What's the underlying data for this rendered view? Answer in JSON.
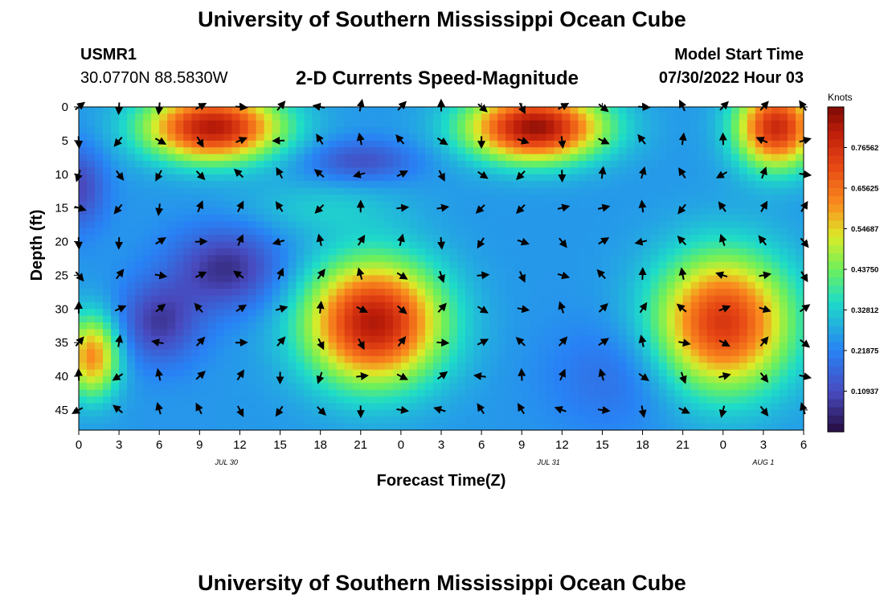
{
  "page": {
    "title": "University of Southern Mississippi Ocean Cube",
    "title_bottom": "University of Southern Mississippi Ocean Cube",
    "station_id": "USMR1",
    "coordinates": "30.0770N  88.5830W",
    "subtitle": "2-D Currents Speed-Magnitude",
    "model_start_label": "Model Start Time",
    "model_start_value": "07/30/2022 Hour 03"
  },
  "chart_data": {
    "type": "heatmap",
    "title": "2-D Currents Speed-Magnitude",
    "xlabel": "Forecast Time(Z)",
    "ylabel": "Depth (ft)",
    "x_tick_labels": [
      "0",
      "3",
      "6",
      "9",
      "12",
      "15",
      "18",
      "21",
      "0",
      "3",
      "6",
      "9",
      "12",
      "15",
      "18",
      "21",
      "0",
      "3",
      "6"
    ],
    "date_labels": [
      {
        "label": "JUL 30",
        "hour_index": 11
      },
      {
        "label": "JUL 31",
        "hour_index": 35
      },
      {
        "label": "AUG 1",
        "hour_index": 51
      }
    ],
    "x_range_hours": [
      0,
      54
    ],
    "y_ticks": [
      0,
      5,
      10,
      15,
      20,
      25,
      30,
      35,
      40,
      45
    ],
    "y_range_ft": [
      0,
      48
    ],
    "colorbar": {
      "label": "Knots",
      "range": [
        0,
        0.875
      ],
      "ticks": [
        "0.10937",
        "0.21875",
        "0.32812",
        "0.43750",
        "0.54687",
        "0.65625",
        "0.76562"
      ],
      "tick_values": [
        0.10937,
        0.21875,
        0.32812,
        0.4375,
        0.54687,
        0.65625,
        0.76562
      ]
    },
    "arrow_times_hours": [
      0,
      3,
      6,
      9,
      12,
      15,
      18,
      21,
      24,
      27,
      30,
      33,
      36,
      39,
      42,
      45,
      48,
      51,
      54
    ],
    "arrow_depths_ft": [
      0,
      5,
      10,
      15,
      20,
      25,
      30,
      35,
      40,
      45
    ],
    "speed_features": [
      {
        "t_hours": 10,
        "depth_ft": 3,
        "speed_knots": 0.82,
        "extent_hours": 5,
        "extent_ft": 5
      },
      {
        "t_hours": 34,
        "depth_ft": 3,
        "speed_knots": 0.85,
        "extent_hours": 5,
        "extent_ft": 5
      },
      {
        "t_hours": 52,
        "depth_ft": 3,
        "speed_knots": 0.78,
        "extent_hours": 3,
        "extent_ft": 6
      },
      {
        "t_hours": 22,
        "depth_ft": 32,
        "speed_knots": 0.82,
        "extent_hours": 5,
        "extent_ft": 9
      },
      {
        "t_hours": 48,
        "depth_ft": 32,
        "speed_knots": 0.75,
        "extent_hours": 5,
        "extent_ft": 10
      },
      {
        "t_hours": 1,
        "depth_ft": 37,
        "speed_knots": 0.62,
        "extent_hours": 2,
        "extent_ft": 6
      },
      {
        "t_hours": 11,
        "depth_ft": 24,
        "speed_knots": 0.06,
        "extent_hours": 4,
        "extent_ft": 6
      },
      {
        "t_hours": 6,
        "depth_ft": 32,
        "speed_knots": 0.08,
        "extent_hours": 3,
        "extent_ft": 6
      },
      {
        "t_hours": 0,
        "depth_ft": 12,
        "speed_knots": 0.1,
        "extent_hours": 2,
        "extent_ft": 6
      },
      {
        "t_hours": 21,
        "depth_ft": 8,
        "speed_knots": 0.12,
        "extent_hours": 4,
        "extent_ft": 3
      },
      {
        "t_hours": 40,
        "depth_ft": 40,
        "speed_knots": 0.18,
        "extent_hours": 5,
        "extent_ft": 8
      },
      {
        "t_hours": 18,
        "depth_ft": 15,
        "speed_knots": 0.32,
        "extent_hours": 6,
        "extent_ft": 4
      }
    ],
    "background_speed_knots": 0.25
  }
}
